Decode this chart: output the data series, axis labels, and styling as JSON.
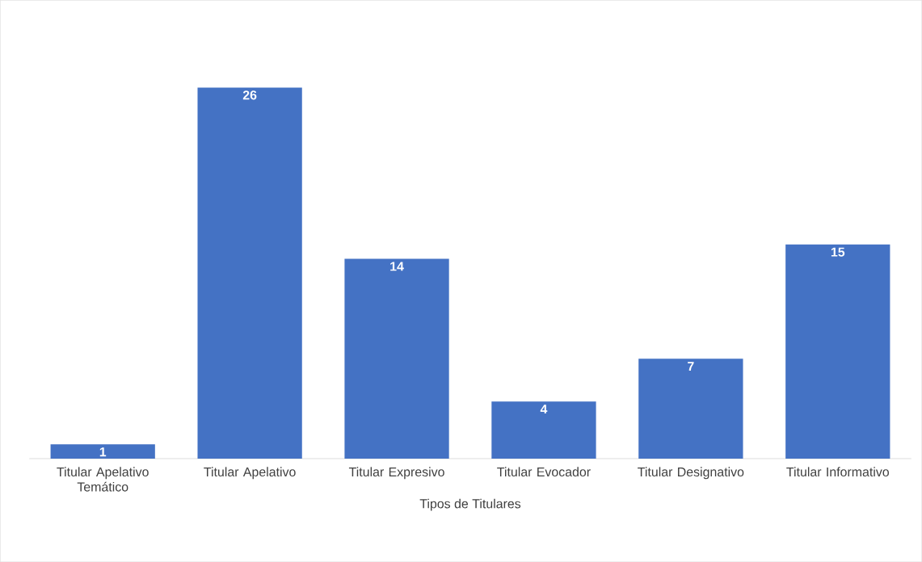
{
  "chart_data": {
    "type": "bar",
    "xlabel": "Tipos de Titulares",
    "categories": [
      "Titular Apelativo Temático",
      "Titular Apelativo",
      "Titular Expresivo",
      "Titular Evocador",
      "Titular Designativo",
      "Titular Informativo"
    ],
    "values": [
      1,
      26,
      14,
      4,
      7,
      15
    ],
    "color": "#4472c4",
    "data_labels": true
  }
}
